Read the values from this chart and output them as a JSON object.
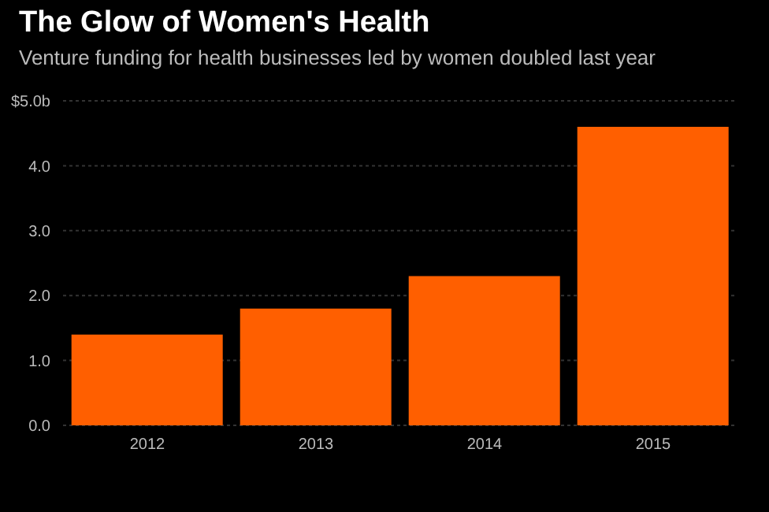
{
  "chart_data": {
    "type": "bar",
    "title": "The Glow of Women's Health",
    "subtitle": "Venture funding for health businesses led by women doubled last year",
    "categories": [
      "2012",
      "2013",
      "2014",
      "2015"
    ],
    "values": [
      1.4,
      1.8,
      2.3,
      4.6
    ],
    "color": "#ff5f00",
    "ylim": [
      0,
      5
    ],
    "yticks": [
      {
        "value": 0,
        "label": "0.0"
      },
      {
        "value": 1,
        "label": "1.0"
      },
      {
        "value": 2,
        "label": "2.0"
      },
      {
        "value": 3,
        "label": "3.0"
      },
      {
        "value": 4,
        "label": "4.0"
      },
      {
        "value": 5,
        "label": "$5.0b"
      }
    ],
    "grid": "y"
  }
}
